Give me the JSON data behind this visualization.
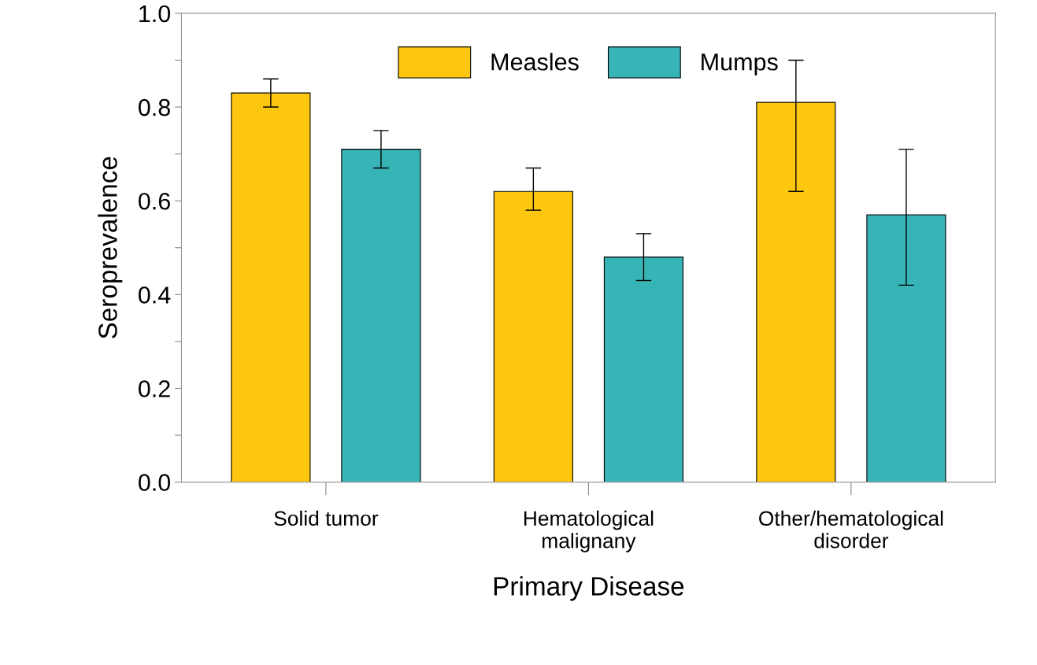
{
  "chart_data": {
    "type": "bar",
    "xlabel": "Primary Disease",
    "ylabel": "Seroprevalence",
    "categories": [
      "Solid tumor",
      "Hematological\nmalignany",
      "Other/hematological\ndisorder"
    ],
    "series": [
      {
        "name": "Measles",
        "color": "#fec70f",
        "values": [
          0.83,
          0.62,
          0.81
        ],
        "errors": [
          [
            0.8,
            0.86
          ],
          [
            0.58,
            0.67
          ],
          [
            0.62,
            0.9
          ]
        ]
      },
      {
        "name": "Mumps",
        "color": "#37b4b6",
        "values": [
          0.71,
          0.48,
          0.57
        ],
        "errors": [
          [
            0.67,
            0.75
          ],
          [
            0.43,
            0.53
          ],
          [
            0.42,
            0.71
          ]
        ]
      }
    ],
    "ylim": [
      0,
      1.0
    ],
    "yticks": [
      {
        "value": 0,
        "label": "0.0"
      },
      {
        "value": 0.1,
        "label": null
      },
      {
        "value": 0.2,
        "label": "0.2"
      },
      {
        "value": 0.3,
        "label": null
      },
      {
        "value": 0.4,
        "label": "0.4"
      },
      {
        "value": 0.5,
        "label": null
      },
      {
        "value": 0.6,
        "label": "0.6"
      },
      {
        "value": 0.7,
        "label": null
      },
      {
        "value": 0.8,
        "label": "0.8"
      },
      {
        "value": 0.9,
        "label": null
      },
      {
        "value": 1.0,
        "label": "1.0"
      }
    ],
    "legend": "top",
    "grid": false
  }
}
